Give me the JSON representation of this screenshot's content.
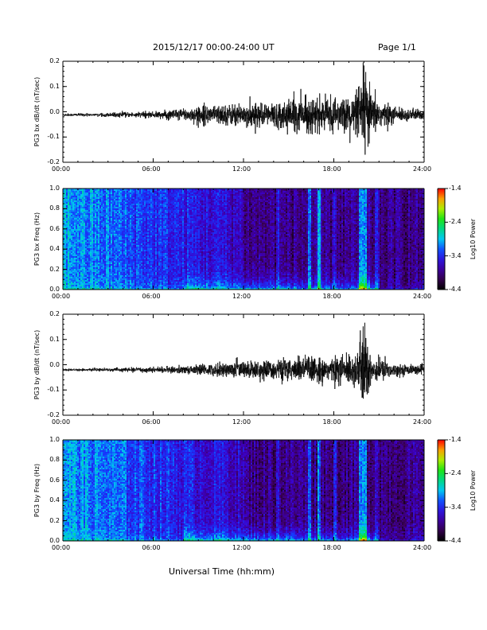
{
  "header": {
    "title": "2015/12/17  00:00-24:00 UT",
    "page": "Page 1/1"
  },
  "x_axis": {
    "label": "Universal Time (hh:mm)",
    "ticks": [
      "00:00",
      "06:00",
      "12:00",
      "18:00",
      "24:00"
    ],
    "range_hours": [
      0,
      24
    ]
  },
  "colorbar": {
    "label": "Log10 Power",
    "ticks": [
      "-1.4",
      "-2.4",
      "-3.4",
      "-4.4"
    ],
    "range": [
      -4.4,
      -1.4
    ]
  },
  "chart_data": [
    {
      "type": "line",
      "name": "panel-1",
      "ylabel": "PG3 bx dB/dt (nT/sec)",
      "yticks": [
        "0.2",
        "0.1",
        "0.0",
        "-0.1",
        "-0.2"
      ],
      "ylim": [
        -0.2,
        0.2
      ],
      "x": [
        0,
        2,
        4,
        6,
        8,
        10,
        12,
        14,
        16,
        18,
        19.5,
        20,
        20.5,
        22,
        24
      ],
      "envelope": [
        0.006,
        0.006,
        0.01,
        0.012,
        0.025,
        0.04,
        0.045,
        0.05,
        0.07,
        0.06,
        0.08,
        0.21,
        0.08,
        0.03,
        0.02
      ],
      "baseline": -0.012
    },
    {
      "type": "heatmap",
      "name": "panel-2",
      "ylabel": "PG3 bx Freq (Hz)",
      "yticks": [
        "1.0",
        "0.8",
        "0.6",
        "0.4",
        "0.2",
        "0.0"
      ],
      "ylim": [
        0,
        1.0
      ]
    },
    {
      "type": "line",
      "name": "panel-3",
      "ylabel": "PG3 by dB/dt (nT/sec)",
      "yticks": [
        "0.2",
        "0.1",
        "0.0",
        "-0.1",
        "-0.2"
      ],
      "ylim": [
        -0.2,
        0.2
      ],
      "x": [
        0,
        2,
        4,
        6,
        8,
        10,
        12,
        14,
        16,
        18,
        19.5,
        20,
        20.5,
        22,
        24
      ],
      "envelope": [
        0.005,
        0.005,
        0.008,
        0.01,
        0.015,
        0.025,
        0.035,
        0.04,
        0.055,
        0.05,
        0.07,
        0.19,
        0.06,
        0.025,
        0.015
      ],
      "baseline": -0.02
    },
    {
      "type": "heatmap",
      "name": "panel-4",
      "ylabel": "PG3 by Freq (Hz)",
      "yticks": [
        "1.0",
        "0.8",
        "0.6",
        "0.4",
        "0.2",
        "0.0"
      ],
      "ylim": [
        0,
        1.0
      ]
    }
  ]
}
